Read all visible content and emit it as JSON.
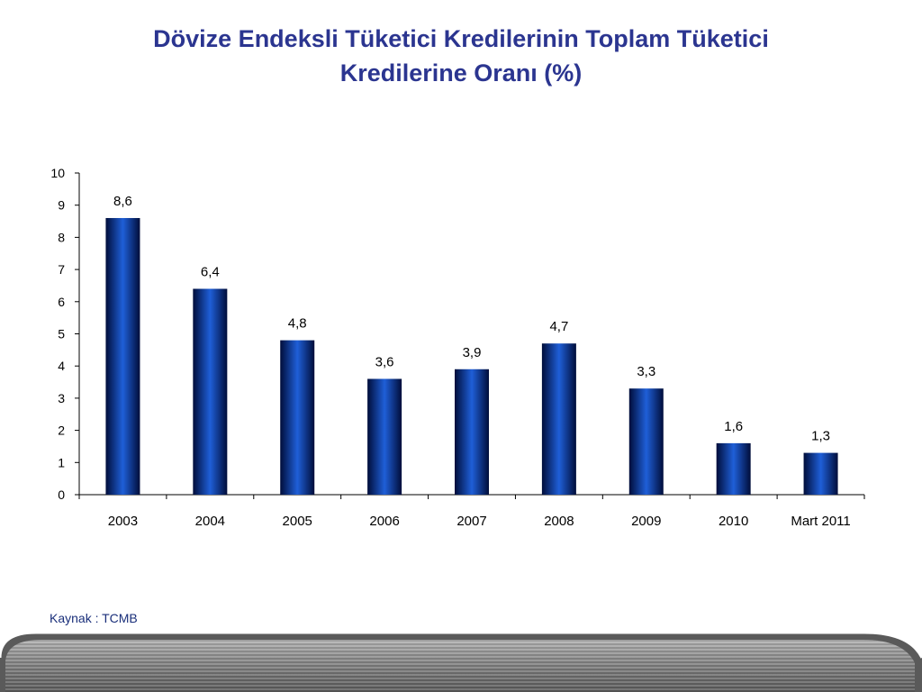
{
  "title": {
    "line1": "Dövize Endeksli Tüketici Kredilerinin Toplam Tüketici",
    "line2": "Kredilerine Oranı (%)"
  },
  "source": "Kaynak : TCMB",
  "colors": {
    "title": "#2b3590",
    "bar_dark": "#001a5c",
    "bar_light": "#1f5fd8",
    "source_text": "#1a2f7a"
  },
  "chart_data": {
    "type": "bar",
    "categories": [
      "2003",
      "2004",
      "2005",
      "2006",
      "2007",
      "2008",
      "2009",
      "2010",
      "Mart 2011"
    ],
    "values": [
      8.6,
      6.4,
      4.8,
      3.6,
      3.9,
      4.7,
      3.3,
      1.6,
      1.3
    ],
    "data_labels": [
      "8,6",
      "6,4",
      "4,8",
      "3,6",
      "3,9",
      "4,7",
      "3,3",
      "1,6",
      "1,3"
    ],
    "y_ticks": [
      "0",
      "1",
      "2",
      "3",
      "4",
      "5",
      "6",
      "7",
      "8",
      "9",
      "10"
    ],
    "ylim": [
      0,
      10
    ],
    "grid": false,
    "legend": "none"
  }
}
